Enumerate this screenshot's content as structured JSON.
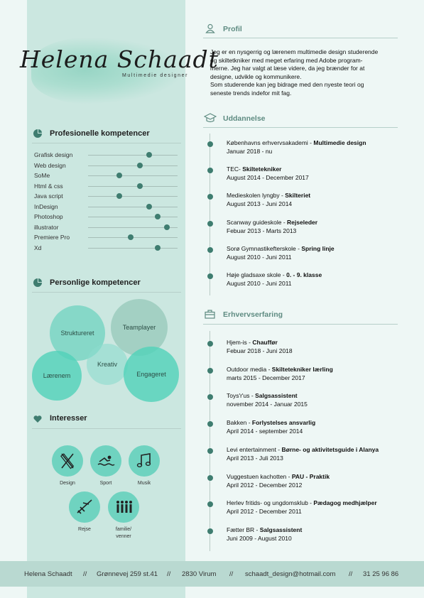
{
  "header": {
    "name": "Helena Schaadt",
    "role": "Multimedie designer"
  },
  "skills": {
    "title": "Profesionelle kompetencer",
    "items": [
      {
        "label": "Grafisk design",
        "level": 0.68
      },
      {
        "label": "Web design",
        "level": 0.58
      },
      {
        "label": "SoMe",
        "level": 0.35
      },
      {
        "label": "Html & css",
        "level": 0.58
      },
      {
        "label": "Java script",
        "level": 0.35
      },
      {
        "label": "InDesign",
        "level": 0.68
      },
      {
        "label": "Photoshop",
        "level": 0.78
      },
      {
        "label": "illustrator",
        "level": 0.88
      },
      {
        "label": "Premiere Pro",
        "level": 0.48
      },
      {
        "label": "Xd",
        "level": 0.78
      }
    ]
  },
  "personal": {
    "title": "Personlige kompetencer",
    "bubbles": [
      "Struktureret",
      "Teamplayer",
      "Kreativ",
      "Lærenem",
      "Engageret"
    ]
  },
  "interests": {
    "title": "Interesser",
    "items": [
      "Design",
      "Sport",
      "Musik",
      "Rejse",
      "familie/",
      "venner"
    ]
  },
  "profile": {
    "title": "Profil",
    "lines": [
      "Jeg er en nysgerrig og lærenem multimedie design studerende",
      "og skiltetkniker med meget erfaring med Adobe program-",
      "merne. Jeg har valgt at læse videre, da jeg brænder for at",
      "designe, udvikle og kommunikere.",
      "Som studerende kan jeg bidrage med den nyeste teori og",
      "seneste trends indefor mit fag."
    ]
  },
  "education": {
    "title": "Uddannelse",
    "entries": [
      {
        "place": "Københavns erhvervsakademi - ",
        "title": "Multimedie design",
        "date": "Januar 2018 - nu"
      },
      {
        "place": "TEC- ",
        "title": "Skiltetekniker",
        "date": "August 2014 - December 2017"
      },
      {
        "place": "Medieskolen lyngby - ",
        "title": "Skilteriet",
        "date": "August 2013 - Juni 2014"
      },
      {
        "place": "Scanway guideskole - ",
        "title": "Rejseleder",
        "date": "Febuar 2013 - Marts 2013"
      },
      {
        "place": "Sorø Gymnastikefterskole - ",
        "title": "Spring linje",
        "date": "August 2010 - Juni 2011"
      },
      {
        "place": "Høje gladsaxe skole - ",
        "title": "0. - 9. klasse",
        "date": "August 2010 - Juni 2011"
      }
    ]
  },
  "experience": {
    "title": "Erhvervserfaring",
    "entries": [
      {
        "place": "Hjem-is - ",
        "title": "Chauffør",
        "date": "Febuar 2018 - Juni 2018"
      },
      {
        "place": "Outdoor media - ",
        "title": "Skiltetekniker lærling",
        "date": "marts 2015 - December 2017"
      },
      {
        "place": "Toys'r'us - ",
        "title": "Salgsassistent",
        "date": "november 2014 - Januar 2015"
      },
      {
        "place": "Bakken - ",
        "title": "Forlystelses ansvarlig",
        "date": "April 2014 - september 2014"
      },
      {
        "place": "Levi entertainment - ",
        "title": "Børne- og aktivitetsguide i Alanya",
        "date": "April 2013 - Juli 2013"
      },
      {
        "place": "Vuggestuen kachotten - ",
        "title": "PAU - Praktik",
        "date": "April 2012 - December 2012"
      },
      {
        "place": "Herlev fritids- og ungdomsklub - ",
        "title": "Pædagog medhjælper",
        "date": "April 2012 - December 2011"
      },
      {
        "place": "Fætter BR - ",
        "title": "Salgsassistent",
        "date": "Juni 2009 - August 2010"
      }
    ]
  },
  "footer": {
    "name": "Helena Schaadt",
    "address": "Grønnevej 259 st.41",
    "city": "2830 Virum",
    "email": "schaadt_design@hotmail.com",
    "phone": "31 25 96 86",
    "separator": "//"
  },
  "colors": {
    "accent": "#3f7d70",
    "bubble": "#6fd3c0",
    "sidebar": "#cbe7e0"
  }
}
